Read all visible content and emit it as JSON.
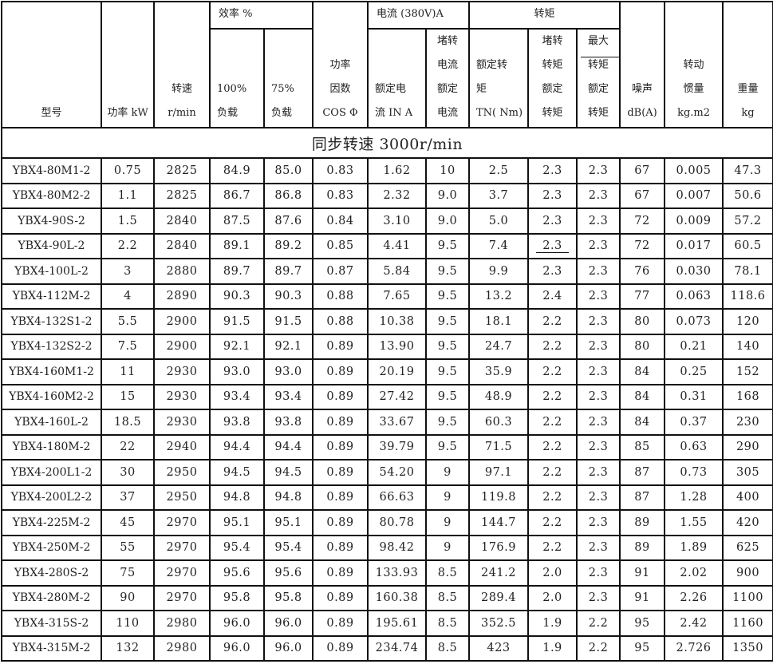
{
  "header": {
    "model": "型号",
    "power": "功率 kW",
    "speed": [
      "转速",
      "r/min"
    ],
    "efficiency": "效率 %",
    "eff100": [
      "100%",
      "负载"
    ],
    "eff75": [
      "75%",
      "负载"
    ],
    "pf": [
      "功率",
      "因数",
      "COS Φ"
    ],
    "current": "电流 (380V)A",
    "rated_current": [
      "额定电",
      "流 IN A"
    ],
    "locked_current": [
      "堵转",
      "电流",
      "额定",
      "电流"
    ],
    "torque": "转矩",
    "rated_torque": [
      "额定转",
      "矩",
      "TN( Nm)"
    ],
    "locked_torque": [
      "堵转",
      "转矩",
      "额定",
      "转矩"
    ],
    "max_torque": [
      "最大",
      "转矩",
      "额定",
      "转矩"
    ],
    "noise": [
      "噪声",
      "dB(A)"
    ],
    "inertia": [
      "转动",
      "惯量",
      "kg.m2"
    ],
    "weight": [
      "重量",
      "kg"
    ]
  },
  "section": "同步转速 3000r/min",
  "rows": [
    [
      "YBX4-80M1-2",
      "0.75",
      "2825",
      "84.9",
      "85.0",
      "0.83",
      "1.62",
      "10",
      "2.5",
      "2.3",
      "2.3",
      "67",
      "0.005",
      "47.3"
    ],
    [
      "YBX4-80M2-2",
      "1.1",
      "2825",
      "86.7",
      "86.8",
      "0.83",
      "2.32",
      "9.0",
      "3.7",
      "2.3",
      "2.3",
      "67",
      "0.007",
      "50.6"
    ],
    [
      "YBX4-90S-2",
      "1.5",
      "2840",
      "87.5",
      "87.6",
      "0.84",
      "3.10",
      "9.0",
      "5.0",
      "2.3",
      "2.3",
      "72",
      "0.009",
      "57.2"
    ],
    [
      "YBX4-90L-2",
      "2.2",
      "2840",
      "89.1",
      "89.2",
      "0.85",
      "4.41",
      "9.5",
      "7.4",
      "2.3",
      "2.3",
      "72",
      "0.017",
      "60.5"
    ],
    [
      "YBX4-100L-2",
      "3",
      "2880",
      "89.7",
      "89.7",
      "0.87",
      "5.84",
      "9.5",
      "9.9",
      "2.3",
      "2.3",
      "76",
      "0.030",
      "78.1"
    ],
    [
      "YBX4-112M-2",
      "4",
      "2890",
      "90.3",
      "90.3",
      "0.88",
      "7.65",
      "9.5",
      "13.2",
      "2.4",
      "2.3",
      "77",
      "0.063",
      "118.6"
    ],
    [
      "YBX4-132S1-2",
      "5.5",
      "2900",
      "91.5",
      "91.5",
      "0.88",
      "10.38",
      "9.5",
      "18.1",
      "2.2",
      "2.3",
      "80",
      "0.073",
      "120"
    ],
    [
      "YBX4-132S2-2",
      "7.5",
      "2900",
      "92.1",
      "92.1",
      "0.89",
      "13.90",
      "9.5",
      "24.7",
      "2.2",
      "2.3",
      "80",
      "0.21",
      "140"
    ],
    [
      "YBX4-160M1-2",
      "11",
      "2930",
      "93.0",
      "93.0",
      "0.89",
      "20.19",
      "9.5",
      "35.9",
      "2.2",
      "2.3",
      "84",
      "0.25",
      "152"
    ],
    [
      "YBX4-160M2-2",
      "15",
      "2930",
      "93.4",
      "93.4",
      "0.89",
      "27.42",
      "9.5",
      "48.9",
      "2.2",
      "2.3",
      "84",
      "0.31",
      "168"
    ],
    [
      "YBX4-160L-2",
      "18.5",
      "2930",
      "93.8",
      "93.8",
      "0.89",
      "33.67",
      "9.5",
      "60.3",
      "2.2",
      "2.3",
      "84",
      "0.37",
      "230"
    ],
    [
      "YBX4-180M-2",
      "22",
      "2940",
      "94.4",
      "94.4",
      "0.89",
      "39.79",
      "9.5",
      "71.5",
      "2.2",
      "2.3",
      "85",
      "0.63",
      "290"
    ],
    [
      "YBX4-200L1-2",
      "30",
      "2950",
      "94.5",
      "94.5",
      "0.89",
      "54.20",
      "9",
      "97.1",
      "2.2",
      "2.3",
      "87",
      "0.73",
      "305"
    ],
    [
      "YBX4-200L2-2",
      "37",
      "2950",
      "94.8",
      "94.8",
      "0.89",
      "66.63",
      "9",
      "119.8",
      "2.2",
      "2.3",
      "87",
      "1.28",
      "400"
    ],
    [
      "YBX4-225M-2",
      "45",
      "2970",
      "95.1",
      "95.1",
      "0.89",
      "80.78",
      "9",
      "144.7",
      "2.2",
      "2.3",
      "89",
      "1.55",
      "420"
    ],
    [
      "YBX4-250M-2",
      "55",
      "2970",
      "95.4",
      "95.4",
      "0.89",
      "98.42",
      "9",
      "176.9",
      "2.2",
      "2.3",
      "89",
      "1.89",
      "625"
    ],
    [
      "YBX4-280S-2",
      "75",
      "2970",
      "95.6",
      "95.6",
      "0.89",
      "133.93",
      "8.5",
      "241.2",
      "2.0",
      "2.3",
      "91",
      "2.02",
      "900"
    ],
    [
      "YBX4-280M-2",
      "90",
      "2970",
      "95.8",
      "95.8",
      "0.89",
      "160.38",
      "8.5",
      "289.4",
      "2.0",
      "2.3",
      "91",
      "2.26",
      "1100"
    ],
    [
      "YBX4-315S-2",
      "110",
      "2980",
      "96.0",
      "96.0",
      "0.89",
      "195.61",
      "8.5",
      "352.5",
      "1.9",
      "2.2",
      "95",
      "2.42",
      "1160"
    ],
    [
      "YBX4-315M-2",
      "132",
      "2980",
      "96.0",
      "96.0",
      "0.89",
      "234.74",
      "8.5",
      "423",
      "1.9",
      "2.2",
      "95",
      "2.726",
      "1350"
    ]
  ]
}
